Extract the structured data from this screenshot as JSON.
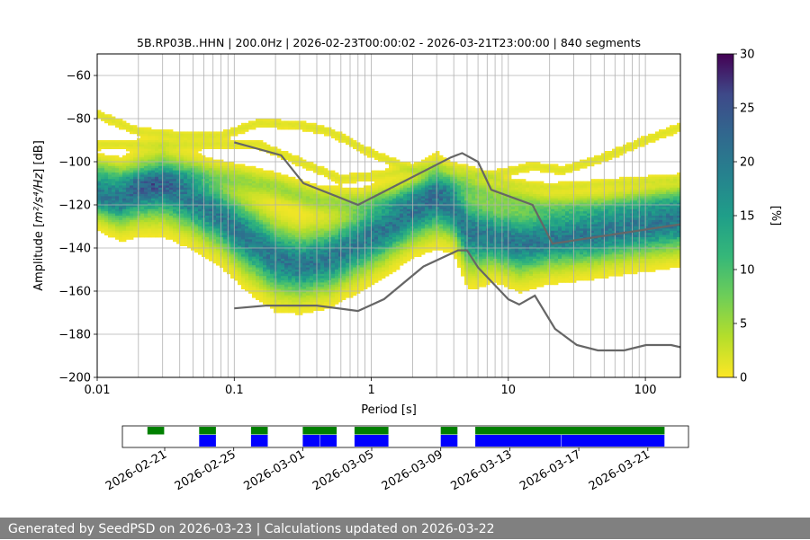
{
  "chart_data": [
    {
      "type": "heatmap",
      "subtype": "probabilistic-power-spectral-density",
      "title": "5B.RP03B..HHN | 200.0Hz | 2026-02-23T00:00:02 - 2026-03-21T23:00:00 | 840 segments",
      "xlabel": "Period [s]",
      "ylabel_prefix": "Amplitude [",
      "ylabel_math": "m²/s⁴/Hz",
      "ylabel_suffix": "] [dB]",
      "x_scale": "log",
      "xlim": [
        0.01,
        180
      ],
      "ylim": [
        -200,
        -50
      ],
      "x_ticks": [
        {
          "value": 0.01,
          "label": "0.01"
        },
        {
          "value": 0.1,
          "label": "0.1"
        },
        {
          "value": 1,
          "label": "1"
        },
        {
          "value": 10,
          "label": "10"
        },
        {
          "value": 100,
          "label": "100"
        }
      ],
      "y_ticks": [
        {
          "value": -60,
          "label": "−60"
        },
        {
          "value": -80,
          "label": "−80"
        },
        {
          "value": -100,
          "label": "−100"
        },
        {
          "value": -120,
          "label": "−120"
        },
        {
          "value": -140,
          "label": "−140"
        },
        {
          "value": -160,
          "label": "−160"
        },
        {
          "value": -180,
          "label": "−180"
        },
        {
          "value": -200,
          "label": "−200"
        }
      ],
      "grid": true,
      "colorbar": {
        "label": "[%]",
        "range": [
          0,
          30
        ],
        "colormap": "viridis-reversed",
        "ticks": [
          {
            "value": 0,
            "label": "0"
          },
          {
            "value": 5,
            "label": "5"
          },
          {
            "value": 10,
            "label": "10"
          },
          {
            "value": 15,
            "label": "15"
          },
          {
            "value": 20,
            "label": "20"
          },
          {
            "value": 25,
            "label": "25"
          },
          {
            "value": 30,
            "label": "30"
          }
        ]
      },
      "density_bands": [
        {
          "name": "main",
          "points": [
            [
              0.01,
              -115,
              9
            ],
            [
              0.015,
              -118,
              10
            ],
            [
              0.02,
              -114,
              11
            ],
            [
              0.03,
              -112,
              12
            ],
            [
              0.05,
              -118,
              12
            ],
            [
              0.08,
              -126,
              12
            ],
            [
              0.12,
              -135,
              13
            ],
            [
              0.2,
              -145,
              13
            ],
            [
              0.3,
              -148,
              12
            ],
            [
              0.5,
              -145,
              12
            ],
            [
              0.8,
              -138,
              12
            ],
            [
              1.2,
              -132,
              12
            ],
            [
              2,
              -124,
              11
            ],
            [
              3,
              -118,
              12
            ],
            [
              4,
              -122,
              11
            ],
            [
              5,
              -132,
              14
            ],
            [
              6,
              -134,
              13
            ],
            [
              8,
              -135,
              11
            ],
            [
              12,
              -138,
              12
            ],
            [
              20,
              -136,
              11
            ],
            [
              40,
              -134,
              11
            ],
            [
              80,
              -131,
              11
            ],
            [
              180,
              -128,
              11
            ]
          ]
        },
        {
          "name": "upper-low",
          "points": [
            [
              0.01,
              -104,
              5
            ],
            [
              0.02,
              -110,
              6
            ],
            [
              0.05,
              -106,
              5
            ],
            [
              0.1,
              -108,
              5
            ],
            [
              0.2,
              -112,
              5
            ],
            [
              0.4,
              -118,
              5
            ],
            [
              0.8,
              -120,
              5
            ],
            [
              1.5,
              -118,
              5
            ],
            [
              3,
              -112,
              5
            ],
            [
              5,
              -112,
              5
            ],
            [
              10,
              -118,
              6
            ],
            [
              20,
              -122,
              5
            ],
            [
              50,
              -122,
              5
            ],
            [
              180,
              -118,
              5
            ]
          ]
        },
        {
          "name": "upper-high",
          "points": [
            [
              0.01,
              -78,
              2
            ],
            [
              0.02,
              -86,
              2
            ],
            [
              0.04,
              -88,
              2
            ],
            [
              0.08,
              -88,
              2
            ],
            [
              0.15,
              -82,
              2
            ],
            [
              0.3,
              -83,
              2
            ],
            [
              0.5,
              -86,
              2
            ],
            [
              1,
              -96,
              2
            ],
            [
              2,
              -104,
              2
            ],
            [
              4,
              -108,
              2
            ],
            [
              8,
              -106,
              2
            ],
            [
              15,
              -102,
              2
            ],
            [
              25,
              -104,
              2
            ],
            [
              50,
              -98,
              2
            ],
            [
              100,
              -90,
              2
            ],
            [
              180,
              -84,
              2
            ]
          ]
        },
        {
          "name": "upper-mid",
          "points": [
            [
              0.15,
              -92,
              2
            ],
            [
              0.3,
              -100,
              2
            ],
            [
              0.6,
              -108,
              2
            ],
            [
              1.2,
              -106,
              2
            ],
            [
              2.5,
              -102,
              2
            ],
            [
              5,
              -104,
              2
            ],
            [
              10,
              -110,
              2
            ],
            [
              20,
              -112,
              2
            ],
            [
              60,
              -110,
              2
            ],
            [
              180,
              -108,
              2
            ]
          ]
        }
      ],
      "series": [
        {
          "name": "NHNM",
          "color": "#666666",
          "points": [
            [
              0.1,
              -91
            ],
            [
              0.22,
              -97
            ],
            [
              0.32,
              -110
            ],
            [
              0.8,
              -120
            ],
            [
              3.8,
              -98
            ],
            [
              4.6,
              -96
            ],
            [
              6,
              -100
            ],
            [
              7.5,
              -113
            ],
            [
              15,
              -120
            ],
            [
              21,
              -138
            ],
            [
              180,
              -129
            ]
          ]
        },
        {
          "name": "NLNM",
          "color": "#666666",
          "points": [
            [
              0.1,
              -168
            ],
            [
              0.17,
              -166.7
            ],
            [
              0.4,
              -166.7
            ],
            [
              0.8,
              -169.2
            ],
            [
              1.24,
              -163.7
            ],
            [
              2.4,
              -148.6
            ],
            [
              4.3,
              -141.1
            ],
            [
              5.0,
              -141.1
            ],
            [
              6.0,
              -149.0
            ],
            [
              10,
              -163.8
            ],
            [
              12,
              -166.2
            ],
            [
              15.6,
              -162.1
            ],
            [
              21.9,
              -177.5
            ],
            [
              31.6,
              -185
            ],
            [
              45,
              -187.5
            ],
            [
              70,
              -187.5
            ],
            [
              101,
              -185
            ],
            [
              154,
              -185
            ],
            [
              180,
              -186
            ]
          ]
        }
      ]
    },
    {
      "type": "timeline",
      "subtype": "data-availability",
      "date_ticks": [
        "2026-02-21",
        "2026-02-25",
        "2026-03-01",
        "2026-03-05",
        "2026-03-09",
        "2026-03-13",
        "2026-03-17",
        "2026-03-21"
      ],
      "tracks": [
        {
          "name": "data-coverage",
          "color": "#008000",
          "segments": [
            [
              "2026-02-20",
              "2026-02-21"
            ],
            [
              "2026-02-23",
              "2026-02-24"
            ],
            [
              "2026-02-26",
              "2026-02-27"
            ],
            [
              "2026-03-01",
              "2026-03-03"
            ],
            [
              "2026-03-04",
              "2026-03-06"
            ],
            [
              "2026-03-09",
              "2026-03-10"
            ],
            [
              "2026-03-11",
              "2026-03-22"
            ]
          ]
        },
        {
          "name": "psd-segments",
          "color": "#0000ff",
          "segments": [
            [
              "2026-02-23",
              "2026-02-24"
            ],
            [
              "2026-02-26",
              "2026-02-27"
            ],
            [
              "2026-03-01",
              "2026-03-02"
            ],
            [
              "2026-03-02",
              "2026-03-03"
            ],
            [
              "2026-03-04",
              "2026-03-06"
            ],
            [
              "2026-03-09",
              "2026-03-10"
            ],
            [
              "2026-03-11",
              "2026-03-16"
            ],
            [
              "2026-03-16",
              "2026-03-22"
            ]
          ]
        }
      ]
    }
  ],
  "footer": {
    "text": "Generated by SeedPSD on 2026-03-23 | Calculations updated on 2026-03-22"
  }
}
